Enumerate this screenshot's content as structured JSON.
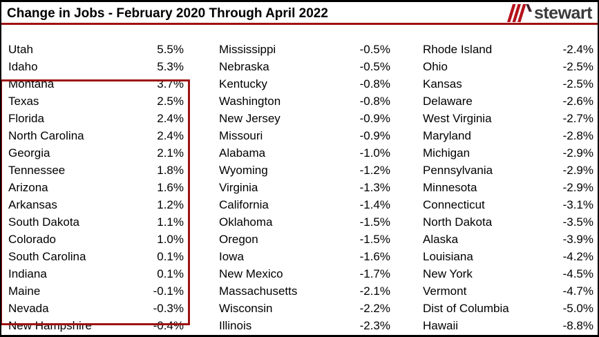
{
  "header": {
    "title": "Change in Jobs - February 2020 Through April 2022",
    "logo": {
      "word": "stewart",
      "mark": "triple-slash-peak-mark"
    }
  },
  "colors": {
    "rule_and_box_red": "#9E1111",
    "logo_stripe_red": "#B5121B",
    "logo_peak_dark": "#3F2328",
    "logo_text_gray": "#3A3A3A",
    "frame_border_black": "#000000",
    "text_black": "#000000",
    "background": "#FFFFFF"
  },
  "chart_data": {
    "type": "table",
    "title": "Change in Jobs - February 2020 Through April 2022",
    "layout": "three text columns of state / percent-change pairs, values right-aligned",
    "highlight": {
      "description": "Dark red box outlines the positive-change states (rows 1-14 of column 1, Utah through Indiana)",
      "column": 0,
      "row_start": 0,
      "row_end": 13,
      "box_color": "#9E1111"
    },
    "columns": [
      [
        {
          "state": "Utah",
          "value": "5.5%"
        },
        {
          "state": "Idaho",
          "value": "5.3%"
        },
        {
          "state": "Montana",
          "value": "3.7%"
        },
        {
          "state": "Texas",
          "value": "2.5%"
        },
        {
          "state": "Florida",
          "value": "2.4%"
        },
        {
          "state": "North Carolina",
          "value": "2.4%"
        },
        {
          "state": "Georgia",
          "value": "2.1%"
        },
        {
          "state": "Tennessee",
          "value": "1.8%"
        },
        {
          "state": "Arizona",
          "value": "1.6%"
        },
        {
          "state": "Arkansas",
          "value": "1.2%"
        },
        {
          "state": "South Dakota",
          "value": "1.1%"
        },
        {
          "state": "Colorado",
          "value": "1.0%"
        },
        {
          "state": "South Carolina",
          "value": "0.1%"
        },
        {
          "state": "Indiana",
          "value": "0.1%"
        },
        {
          "state": "Maine",
          "value": "-0.1%"
        },
        {
          "state": "Nevada",
          "value": "-0.3%"
        },
        {
          "state": "New Hampshire",
          "value": "-0.4%"
        }
      ],
      [
        {
          "state": "Mississippi",
          "value": "-0.5%"
        },
        {
          "state": "Nebraska",
          "value": "-0.5%"
        },
        {
          "state": "Kentucky",
          "value": "-0.8%"
        },
        {
          "state": "Washington",
          "value": "-0.8%"
        },
        {
          "state": "New Jersey",
          "value": "-0.9%"
        },
        {
          "state": "Missouri",
          "value": "-0.9%"
        },
        {
          "state": "Alabama",
          "value": "-1.0%"
        },
        {
          "state": "Wyoming",
          "value": "-1.2%"
        },
        {
          "state": "Virginia",
          "value": "-1.3%"
        },
        {
          "state": "California",
          "value": "-1.4%"
        },
        {
          "state": "Oklahoma",
          "value": "-1.5%"
        },
        {
          "state": "Oregon",
          "value": "-1.5%"
        },
        {
          "state": "Iowa",
          "value": "-1.6%"
        },
        {
          "state": "New Mexico",
          "value": "-1.7%"
        },
        {
          "state": "Massachusetts",
          "value": "-2.1%"
        },
        {
          "state": "Wisconsin",
          "value": "-2.2%"
        },
        {
          "state": "Illinois",
          "value": "-2.3%"
        }
      ],
      [
        {
          "state": "Rhode Island",
          "value": "-2.4%"
        },
        {
          "state": "Ohio",
          "value": "-2.5%"
        },
        {
          "state": "Kansas",
          "value": "-2.5%"
        },
        {
          "state": "Delaware",
          "value": "-2.6%"
        },
        {
          "state": "West Virginia",
          "value": "-2.7%"
        },
        {
          "state": "Maryland",
          "value": "-2.8%"
        },
        {
          "state": "Michigan",
          "value": "-2.9%"
        },
        {
          "state": "Pennsylvania",
          "value": "-2.9%"
        },
        {
          "state": "Minnesota",
          "value": "-2.9%"
        },
        {
          "state": "Connecticut",
          "value": "-3.1%"
        },
        {
          "state": "North Dakota",
          "value": "-3.5%"
        },
        {
          "state": "Alaska",
          "value": "-3.9%"
        },
        {
          "state": "Louisiana",
          "value": "-4.2%"
        },
        {
          "state": "New York",
          "value": "-4.5%"
        },
        {
          "state": "Vermont",
          "value": "-4.7%"
        },
        {
          "state": "Dist of Columbia",
          "value": "-5.0%"
        },
        {
          "state": "Hawaii",
          "value": "-8.8%"
        }
      ]
    ]
  }
}
